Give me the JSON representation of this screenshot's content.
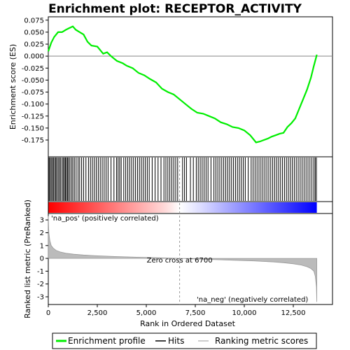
{
  "title": "Enrichment plot: RECEPTOR_ACTIVITY",
  "chart_data": {
    "type": "line",
    "x_label": "Rank in Ordered Dataset",
    "x_range": [
      0,
      14500
    ],
    "x_ticks": [
      0,
      2500,
      5000,
      7500,
      10000,
      12500
    ],
    "x_tick_labels": [
      "0",
      "2,500",
      "5,000",
      "7,500",
      "10,000",
      "12,500"
    ],
    "enrichment": {
      "ylabel": "Enrichment score (ES)",
      "ylim": [
        -0.21,
        0.082
      ],
      "y_ticks": [
        0.075,
        0.05,
        0.025,
        0.0,
        -0.025,
        -0.05,
        -0.075,
        -0.1,
        -0.125,
        -0.15,
        -0.175
      ],
      "y_tick_labels": [
        "0.075",
        "0.050",
        "0.025",
        "0.000",
        "-0.025",
        "-0.050",
        "-0.075",
        "-0.100",
        "-0.125",
        "-0.150",
        "-0.175"
      ],
      "series_name": "Enrichment profile",
      "color": "#00ee00",
      "x": [
        0,
        150,
        300,
        500,
        700,
        900,
        1050,
        1250,
        1400,
        1600,
        1800,
        2000,
        2200,
        2500,
        2800,
        3000,
        3200,
        3500,
        3800,
        4000,
        4300,
        4600,
        4900,
        5200,
        5500,
        5800,
        6100,
        6400,
        6700,
        7000,
        7300,
        7600,
        7900,
        8200,
        8500,
        8800,
        9100,
        9400,
        9700,
        10000,
        10300,
        10600,
        10800,
        11000,
        11200,
        11400,
        11600,
        11800,
        12000,
        12200,
        12400,
        12600,
        12800,
        13000,
        13200,
        13400,
        13550,
        13650,
        13700
      ],
      "y": [
        0.01,
        0.028,
        0.04,
        0.05,
        0.05,
        0.055,
        0.058,
        0.062,
        0.055,
        0.05,
        0.045,
        0.03,
        0.022,
        0.02,
        0.005,
        0.008,
        0.0,
        -0.01,
        -0.015,
        -0.02,
        -0.025,
        -0.035,
        -0.04,
        -0.048,
        -0.055,
        -0.068,
        -0.075,
        -0.08,
        -0.09,
        -0.1,
        -0.11,
        -0.118,
        -0.12,
        -0.125,
        -0.13,
        -0.138,
        -0.142,
        -0.148,
        -0.15,
        -0.155,
        -0.165,
        -0.18,
        -0.178,
        -0.175,
        -0.172,
        -0.168,
        -0.165,
        -0.162,
        -0.16,
        -0.148,
        -0.14,
        -0.13,
        -0.11,
        -0.09,
        -0.07,
        -0.045,
        -0.02,
        -0.005,
        0.003
      ]
    },
    "hits": {
      "series_name": "Hits",
      "x": [
        40,
        90,
        150,
        210,
        260,
        320,
        380,
        430,
        500,
        560,
        620,
        700,
        760,
        820,
        870,
        920,
        980,
        1030,
        1100,
        1180,
        1250,
        1330,
        1420,
        1520,
        1600,
        1700,
        1800,
        1920,
        2050,
        2150,
        2250,
        2350,
        2450,
        2550,
        2650,
        2750,
        2850,
        2950,
        3050,
        3200,
        3350,
        3480,
        3560,
        3640,
        3720,
        3850,
        3950,
        4050,
        4150,
        4250,
        4350,
        4450,
        4550,
        4650,
        4750,
        4850,
        4950,
        5050,
        5150,
        5300,
        5450,
        5600,
        5750,
        5900,
        6000,
        6100,
        6200,
        6300,
        6400,
        6500,
        6600,
        6850,
        6950,
        7050,
        7250,
        7400,
        7550,
        7650,
        7750,
        7850,
        7950,
        8050,
        8150,
        8300,
        8450,
        8550,
        8650,
        8750,
        8850,
        8950,
        9050,
        9150,
        9250,
        9350,
        9450,
        9550,
        9650,
        9750,
        9850,
        9950,
        10050,
        10200,
        10350,
        10450,
        10550,
        10650,
        10750,
        10850,
        10950,
        11050,
        11150,
        11250,
        11350,
        11450,
        11550,
        11650,
        11750,
        11850,
        11950,
        12050,
        12150,
        12250,
        12350,
        12450,
        12550,
        12650,
        12750,
        12850,
        12950,
        13050,
        13150,
        13250,
        13350,
        13450,
        13550,
        13620,
        13680
      ],
      "color": "#000000"
    },
    "gradient": {
      "pos_color": "#ff0000",
      "mid_color": "#ffffff",
      "neg_color": "#0000ff"
    },
    "ranked_metric": {
      "series_name": "Ranking metric scores",
      "ylabel": "Ranked list metric (PreRanked)",
      "ylim": [
        -3.6,
        3.5
      ],
      "y_ticks": [
        3,
        2,
        1,
        0,
        -1,
        -2,
        -3
      ],
      "y_tick_labels": [
        "3",
        "2",
        "1",
        "0",
        "-1",
        "-2",
        "-3"
      ],
      "x": [
        0,
        30,
        80,
        150,
        250,
        400,
        600,
        900,
        1300,
        1800,
        2500,
        3500,
        4500,
        5500,
        6700,
        7500,
        8500,
        9500,
        10500,
        11000,
        11500,
        12000,
        12500,
        12900,
        13200,
        13400,
        13550,
        13620,
        13680,
        13700
      ],
      "y": [
        3.3,
        2.0,
        1.4,
        1.0,
        0.8,
        0.62,
        0.5,
        0.4,
        0.32,
        0.26,
        0.2,
        0.14,
        0.09,
        0.05,
        0.0,
        -0.05,
        -0.1,
        -0.15,
        -0.2,
        -0.24,
        -0.28,
        -0.34,
        -0.42,
        -0.52,
        -0.65,
        -0.8,
        -1.0,
        -1.4,
        -2.2,
        -3.4
      ],
      "color": "#bbbbbb",
      "zero_cross_x": 6700,
      "zero_cross_label": "Zero cross at 6700",
      "pos_label": "'na_pos' (positively correlated)",
      "neg_label": "'na_neg' (negatively correlated)",
      "pos_label_color": "#cc0000",
      "neg_label_color": "#0000cc"
    },
    "legend": {
      "placement": "bottom",
      "entries": [
        "Enrichment profile",
        "Hits",
        "Ranking metric scores"
      ]
    }
  }
}
